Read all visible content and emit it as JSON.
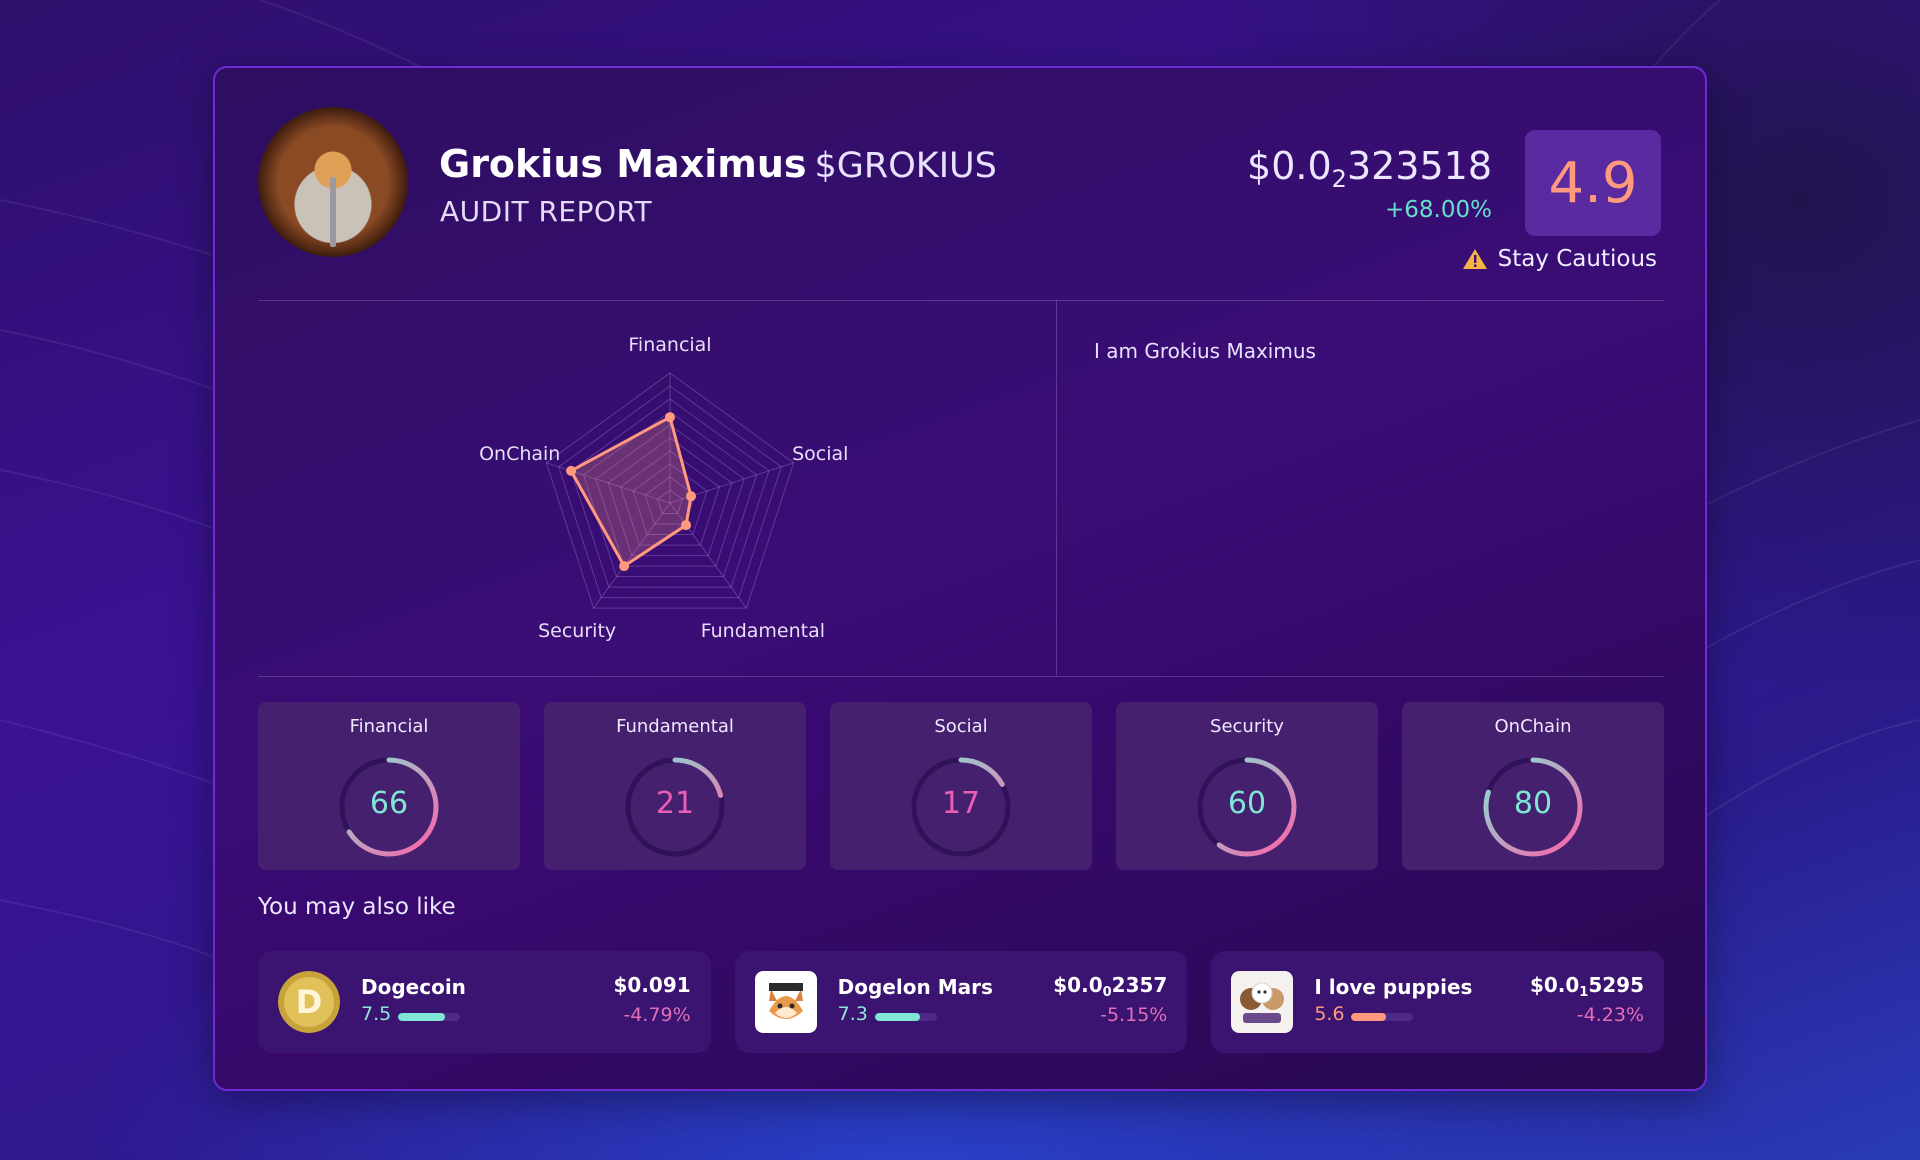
{
  "header": {
    "name": "Grokius Maximus",
    "symbol": "$GROKIUS",
    "subtitle": "AUDIT REPORT",
    "price_prefix": "$0.0",
    "price_zeros": "2",
    "price_digits": "323518",
    "change": "+68.00%",
    "score": "4.9",
    "caution": "Stay Cautious"
  },
  "radar": {
    "axes": [
      "Financial",
      "Social",
      "Fundamental",
      "Security",
      "OnChain"
    ],
    "values": [
      66,
      17,
      21,
      60,
      80
    ],
    "max": 100,
    "color": "#ff9a7e"
  },
  "description": "I am Grokius Maximus",
  "score_cards": [
    {
      "label": "Financial",
      "value": "66",
      "percent": 66,
      "num_color": "#7fe6d6"
    },
    {
      "label": "Fundamental",
      "value": "21",
      "percent": 21,
      "num_color": "#ea5fb5"
    },
    {
      "label": "Social",
      "value": "17",
      "percent": 17,
      "num_color": "#ea5fb5"
    },
    {
      "label": "Security",
      "value": "60",
      "percent": 60,
      "num_color": "#7fe6d6"
    },
    {
      "label": "OnChain",
      "value": "80",
      "percent": 80,
      "num_color": "#7fe6d6"
    }
  ],
  "also_like_title": "You may also like",
  "recommendations": [
    {
      "name": "Dogecoin",
      "score": "7.5",
      "score_percent": 75,
      "bar_color": "#7fe6d6",
      "score_color": "#8fe6d6",
      "price_prefix": "$0.091",
      "price_zeros": "",
      "price_digits": "",
      "change": "-4.79%",
      "logo": "doge-logo"
    },
    {
      "name": "Dogelon Mars",
      "score": "7.3",
      "score_percent": 73,
      "bar_color": "#7fe6d6",
      "score_color": "#8fe6d6",
      "price_prefix": "$0.0",
      "price_zeros": "0",
      "price_digits": "2357",
      "change": "-5.15%",
      "logo": "dogelon-logo"
    },
    {
      "name": "I love puppies",
      "score": "5.6",
      "score_percent": 56,
      "bar_color": "#ff9a7e",
      "score_color": "#ff9a7e",
      "price_prefix": "$0.0",
      "price_zeros": "1",
      "price_digits": "5295",
      "change": "-4.23%",
      "logo": "puppies-logo"
    }
  ]
}
